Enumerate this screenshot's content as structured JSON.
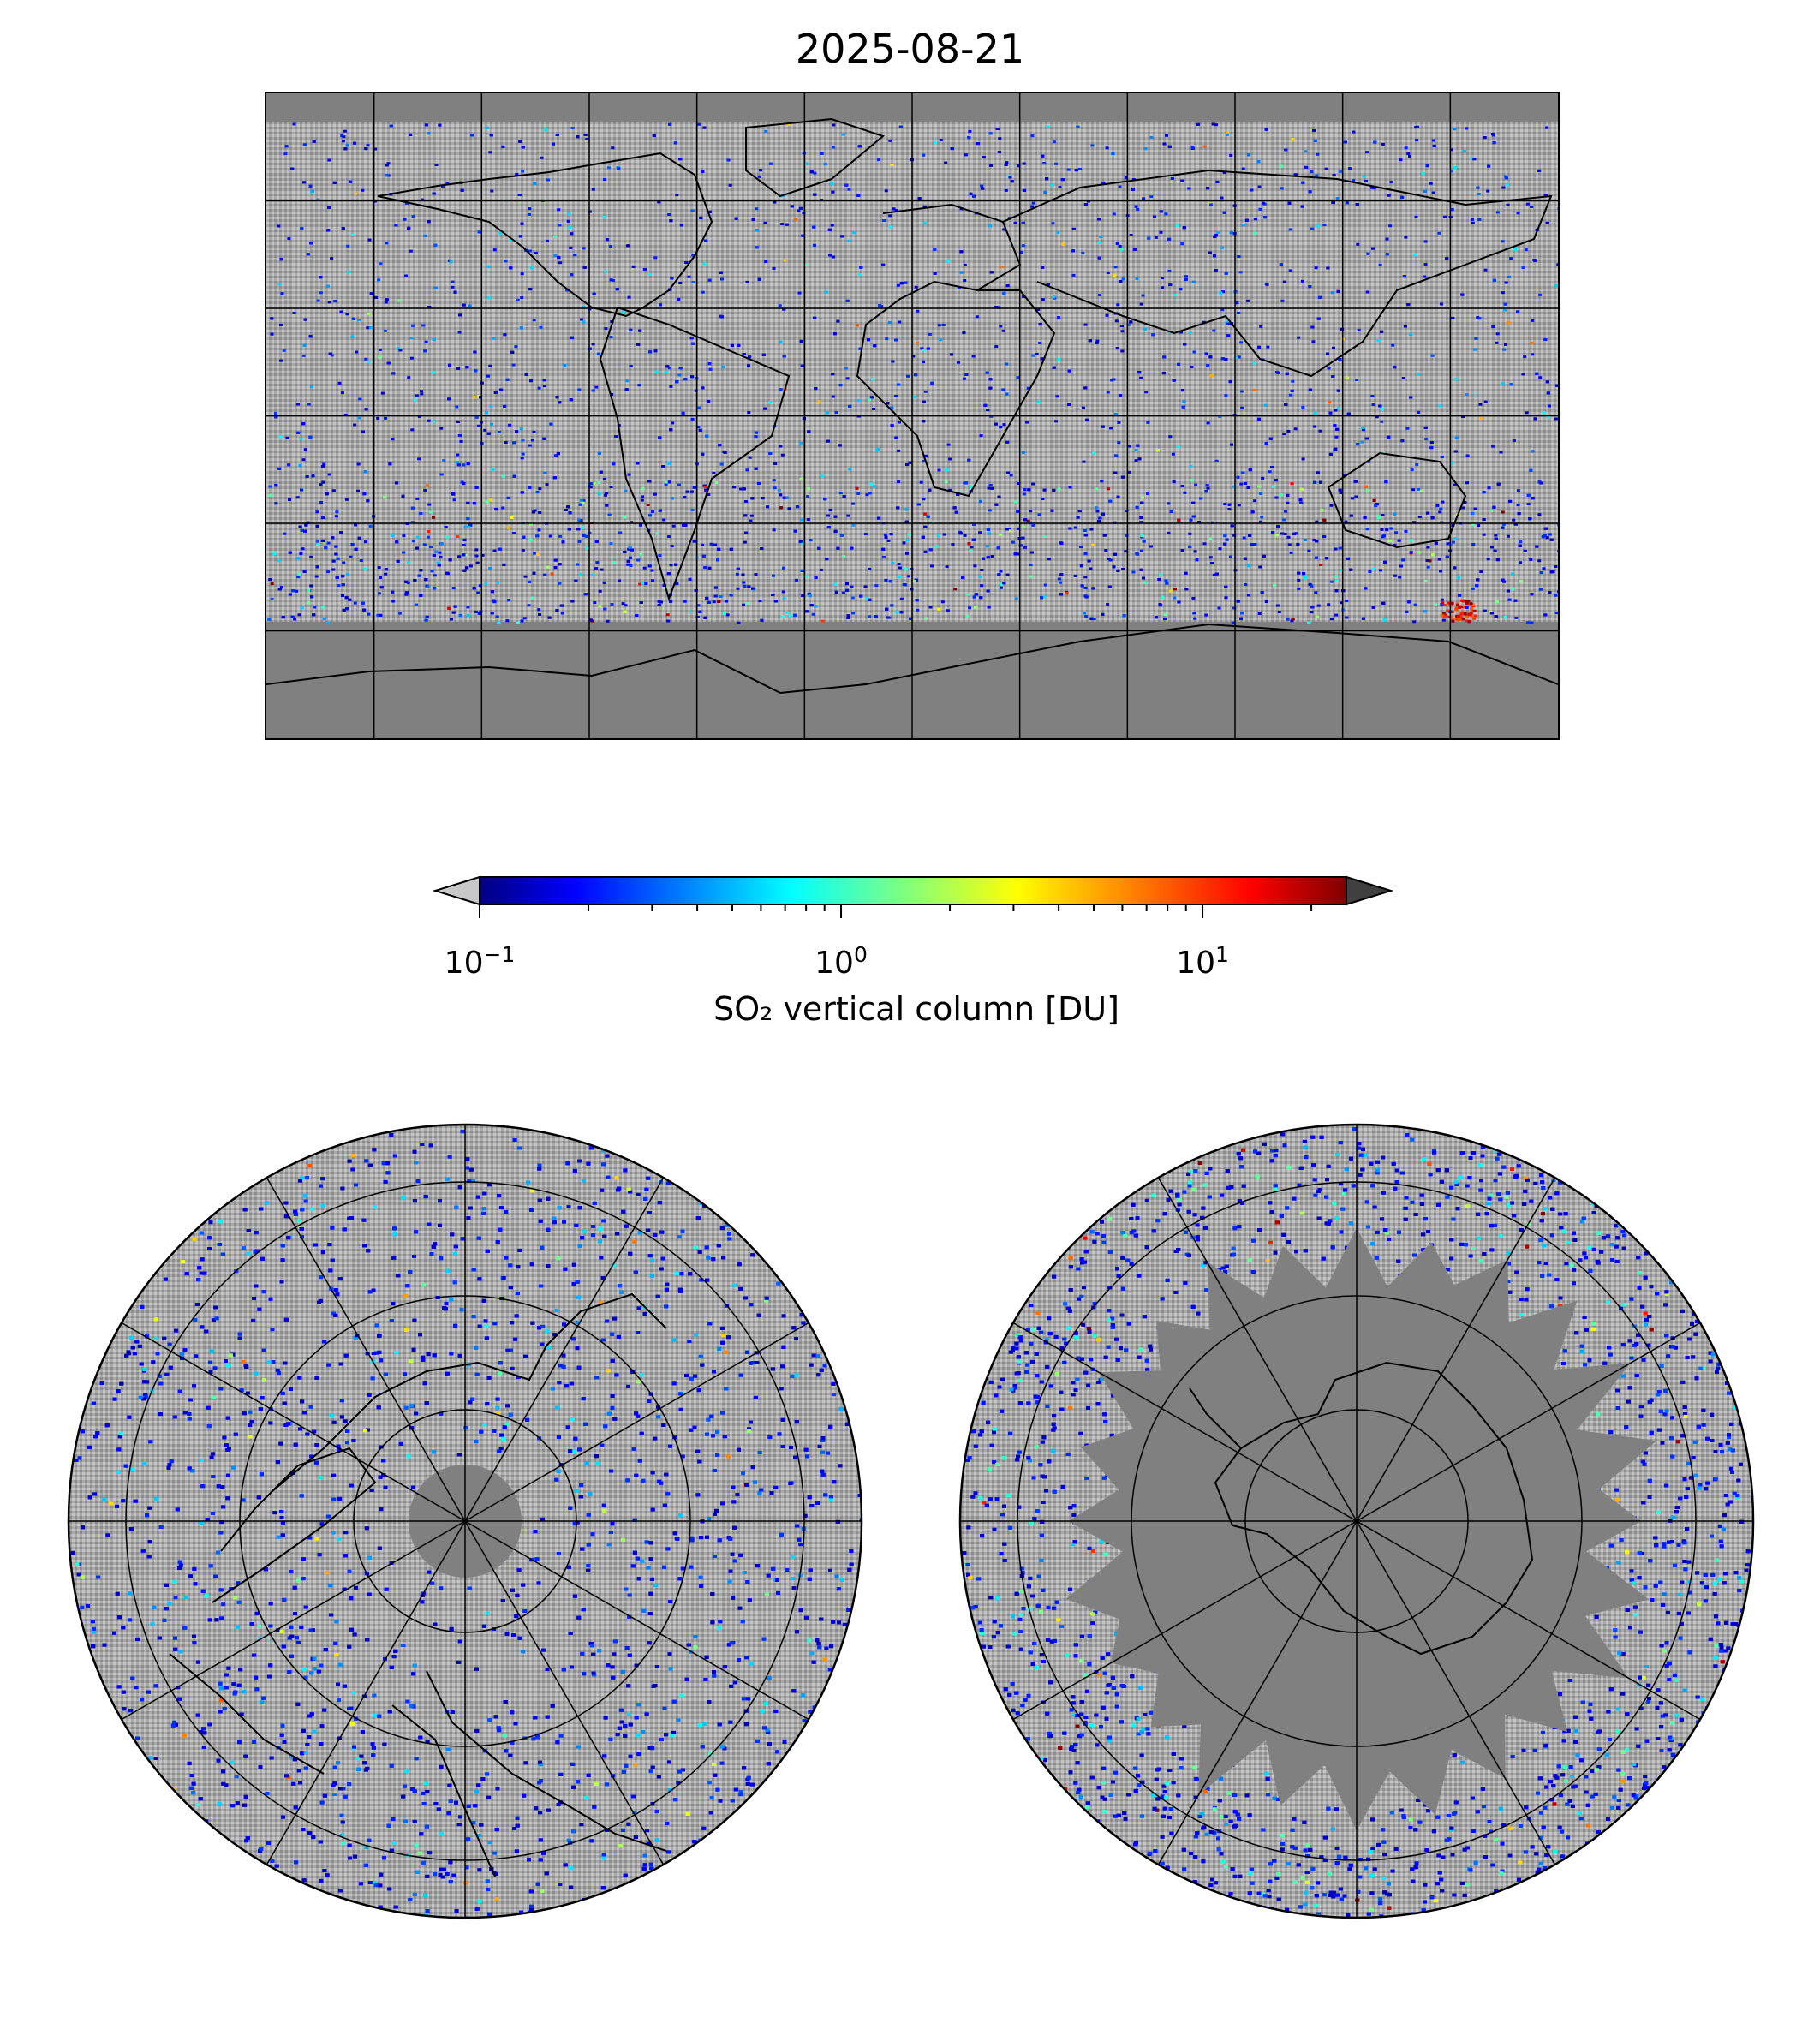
{
  "title": "2025-08-21",
  "colormap": {
    "name": "jet",
    "scale": "log",
    "range": [
      0.1,
      25
    ],
    "extend": "both",
    "under_color": "#c8c8c8",
    "over_color": "#404040",
    "nodata_color": "#808080",
    "ticks": [
      {
        "base": "10",
        "exp": "−1",
        "value": 0.1
      },
      {
        "base": "10",
        "exp": "0",
        "value": 1
      },
      {
        "base": "10",
        "exp": "1",
        "value": 10
      }
    ],
    "label": "SO₂ vertical column [DU]"
  },
  "maps": [
    {
      "name": "world-map",
      "projection": "plate-carree",
      "gridlines": true
    },
    {
      "name": "north-polar-map",
      "projection": "north-polar-stereographic",
      "gridlines": true
    },
    {
      "name": "south-polar-map",
      "projection": "south-polar-stereographic",
      "gridlines": true
    }
  ]
}
